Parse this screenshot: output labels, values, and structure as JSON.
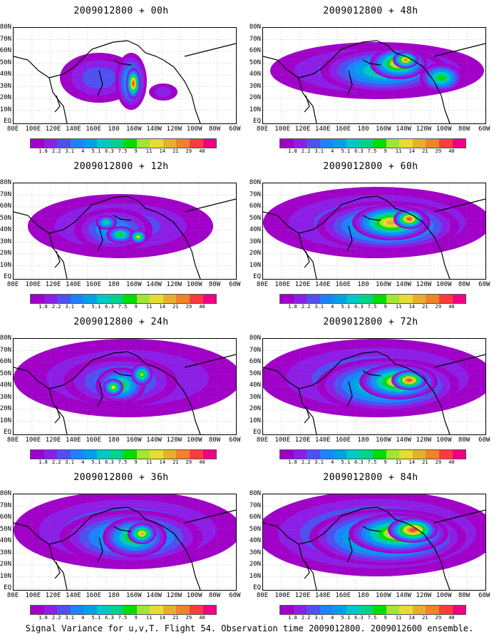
{
  "caption": "Signal Variance for u,v,T. Flight 54. Observation time 2009012800. 2009012600 ensemble.",
  "y_ticks": [
    "80N",
    "70N",
    "60N",
    "50N",
    "40N",
    "30N",
    "20N",
    "10N",
    "EQ"
  ],
  "x_ticks": [
    "80E",
    "100E",
    "120E",
    "140E",
    "160E",
    "180",
    "160W",
    "140W",
    "120W",
    "100W",
    "80W",
    "60W"
  ],
  "colorbar": {
    "labels": [
      "1.8",
      "2.2",
      "3.1",
      "4",
      "5.1",
      "6.3",
      "7.5",
      "9",
      "11",
      "14",
      "21",
      "29",
      "40"
    ],
    "colors": [
      "#a000c8",
      "#8c1ee6",
      "#5050f0",
      "#1e82ff",
      "#00a0e6",
      "#00c8c8",
      "#00d28c",
      "#00dc00",
      "#a0e632",
      "#e6dc32",
      "#e6af2d",
      "#f08228",
      "#fa3c3c",
      "#f00082"
    ]
  },
  "panels": [
    {
      "title": "2009012800 + 00h"
    },
    {
      "title": "2009012800 + 48h"
    },
    {
      "title": "2009012800 + 12h"
    },
    {
      "title": "2009012800 + 60h"
    },
    {
      "title": "2009012800 + 24h"
    },
    {
      "title": "2009012800 + 72h"
    },
    {
      "title": "2009012800 + 36h"
    },
    {
      "title": "2009012800 + 84h"
    }
  ]
}
